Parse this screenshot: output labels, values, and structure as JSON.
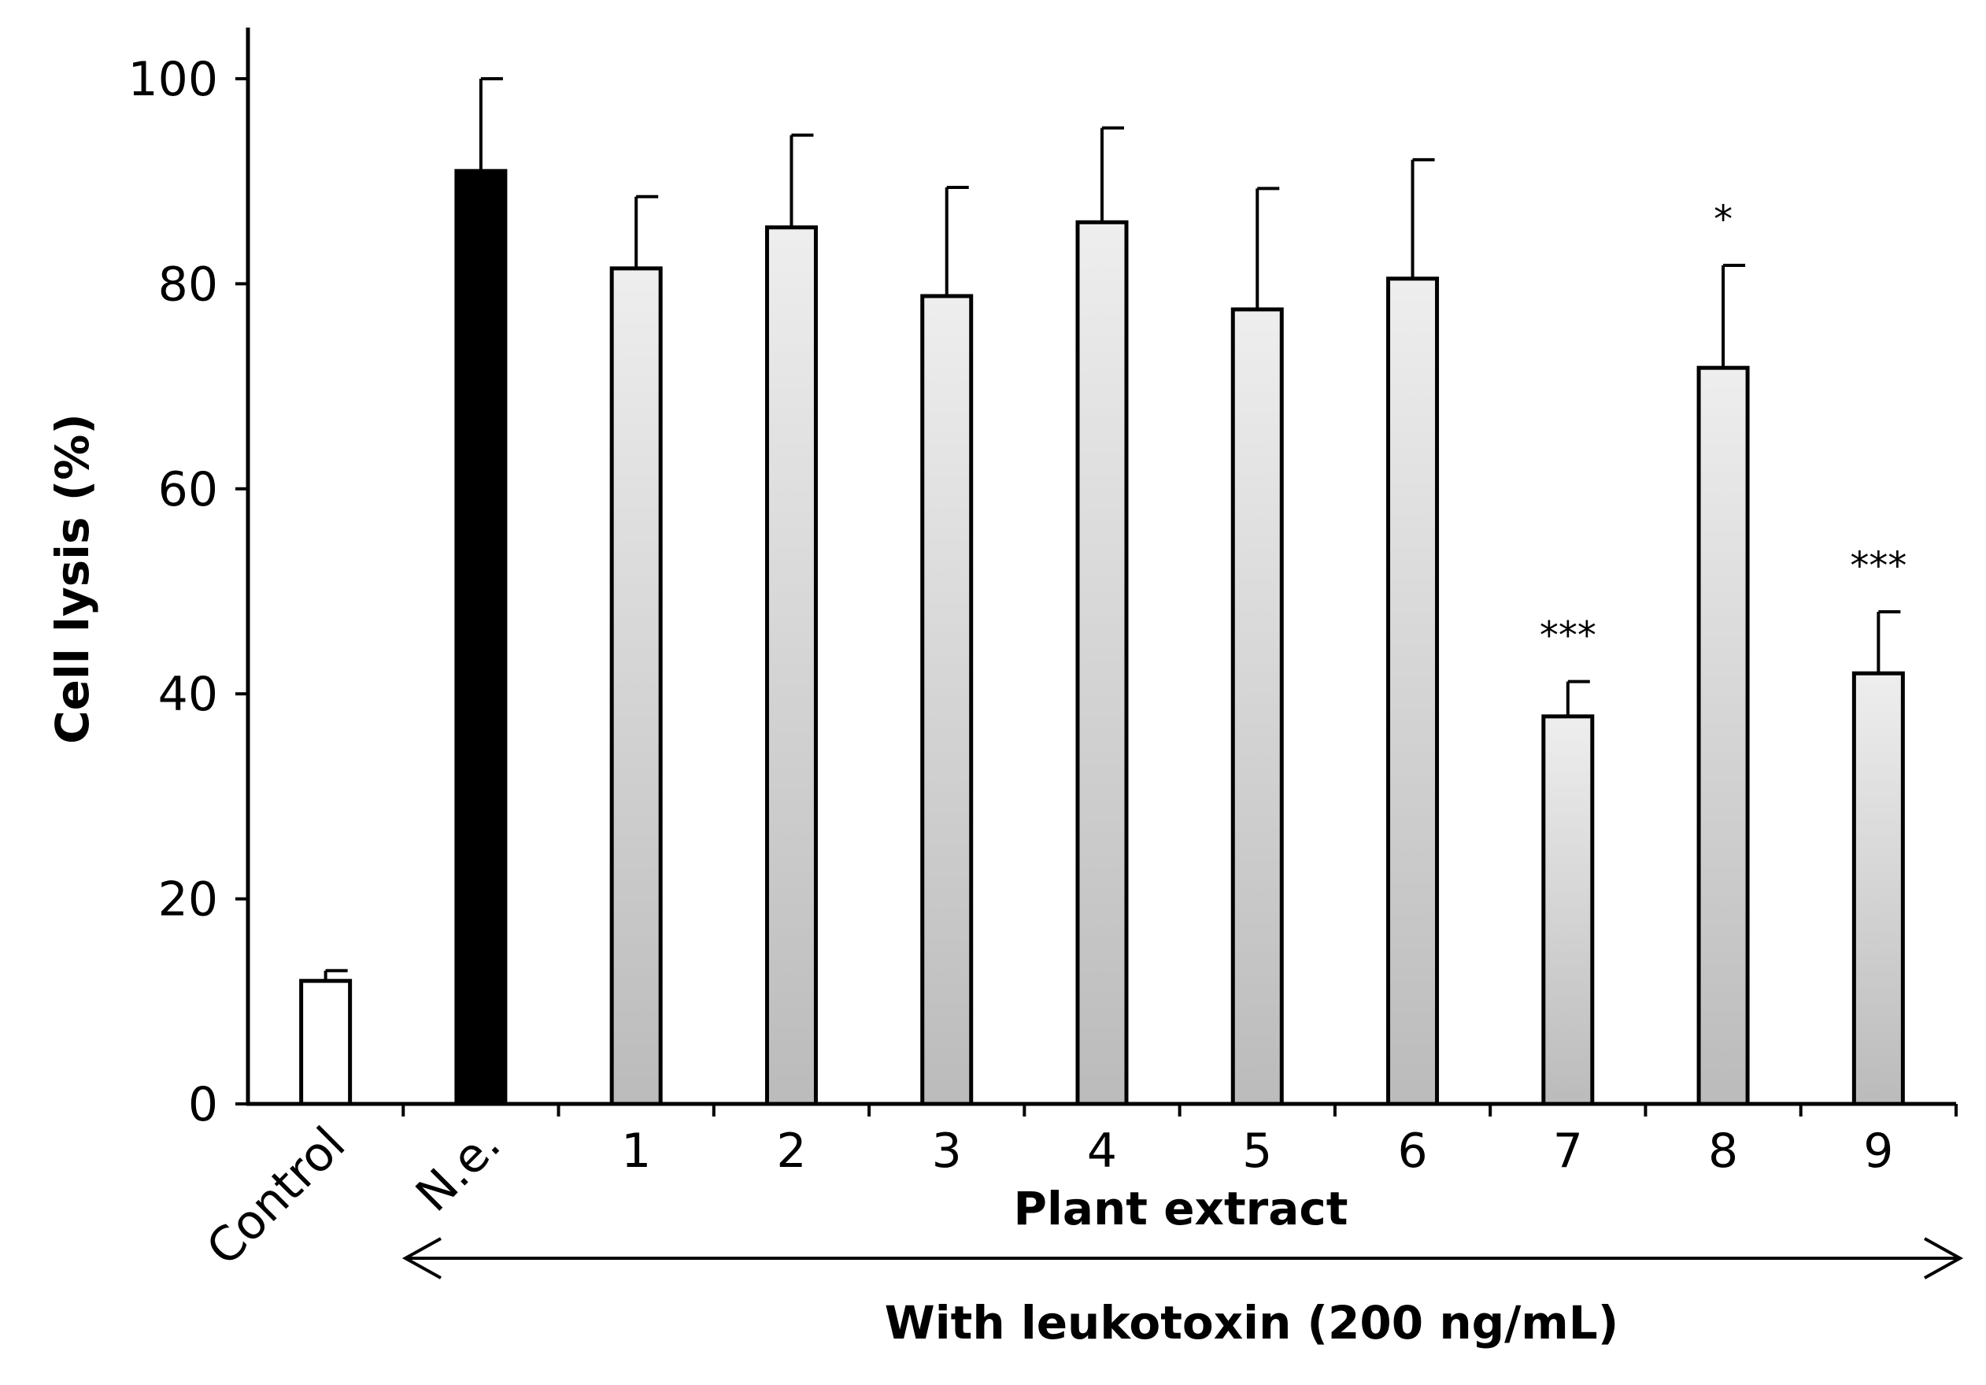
{
  "chart_data": {
    "type": "bar",
    "ylabel": "Cell lysis (%)",
    "xlabel": "Plant extract",
    "ylim": [
      0,
      100
    ],
    "yticks": [
      0,
      20,
      40,
      60,
      80,
      100
    ],
    "grid": false,
    "categories": [
      "Control",
      "N.e.",
      "1",
      "2",
      "3",
      "4",
      "5",
      "6",
      "7",
      "8",
      "9"
    ],
    "values": [
      12,
      91,
      81.5,
      85.5,
      78.8,
      86,
      77.5,
      80.5,
      37.8,
      71.8,
      42
    ],
    "errors": [
      1,
      9,
      7,
      9,
      10.6,
      9.2,
      11.8,
      11.6,
      3.4,
      10,
      6
    ],
    "significance": [
      "",
      "",
      "",
      "",
      "",
      "",
      "",
      "",
      "***",
      "*",
      "***"
    ],
    "bar_styles": [
      "open",
      "solid",
      "gradient",
      "gradient",
      "gradient",
      "gradient",
      "gradient",
      "gradient",
      "gradient",
      "gradient",
      "gradient"
    ],
    "colors": {
      "solid": "#000000",
      "open": "#ffffff",
      "gradient_top": "#eeeeee",
      "gradient_bottom": "#bbbbbb",
      "stroke": "#000000"
    },
    "annotation": "With leukotoxin (200 ng/mL)"
  }
}
